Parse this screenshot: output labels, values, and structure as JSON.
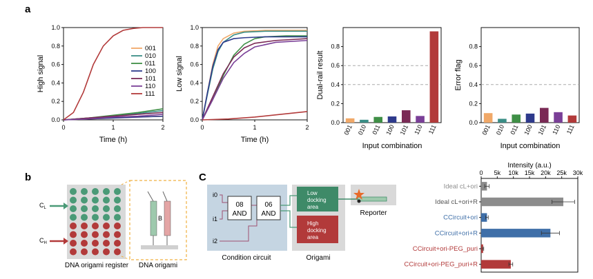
{
  "panels": {
    "a": "a",
    "b": "b",
    "c": "C"
  },
  "legend": {
    "labels": [
      "001",
      "010",
      "011",
      "100",
      "101",
      "110",
      "111"
    ],
    "colors": [
      "#f0a868",
      "#3a8e86",
      "#3f8f46",
      "#2e3a8c",
      "#7a2a55",
      "#7a3f97",
      "#b23a3a"
    ]
  },
  "chart_data": [
    {
      "type": "line",
      "title": "",
      "xlabel": "Time (h)",
      "ylabel": "High signal",
      "xlim": [
        0,
        2
      ],
      "ylim": [
        0,
        1.0
      ],
      "xticks": [
        "0",
        "1",
        "2"
      ],
      "yticks": [
        "0.0",
        "0.2",
        "0.4",
        "0.6",
        "0.8",
        "1.0"
      ],
      "series": [
        {
          "name": "001",
          "x": [
            0,
            0.5,
            1,
            1.5,
            2
          ],
          "y": [
            0,
            0.01,
            0.02,
            0.03,
            0.04
          ]
        },
        {
          "name": "010",
          "x": [
            0,
            0.5,
            1,
            1.5,
            2
          ],
          "y": [
            0,
            0.02,
            0.04,
            0.07,
            0.1
          ]
        },
        {
          "name": "011",
          "x": [
            0,
            0.5,
            1,
            1.5,
            2
          ],
          "y": [
            0,
            0.02,
            0.05,
            0.08,
            0.12
          ]
        },
        {
          "name": "100",
          "x": [
            0,
            0.5,
            1,
            1.5,
            2
          ],
          "y": [
            0,
            0.01,
            0.02,
            0.03,
            0.04
          ]
        },
        {
          "name": "101",
          "x": [
            0,
            0.5,
            1,
            1.5,
            2
          ],
          "y": [
            0,
            0.02,
            0.04,
            0.06,
            0.08
          ]
        },
        {
          "name": "110",
          "x": [
            0,
            0.5,
            1,
            1.5,
            2
          ],
          "y": [
            0,
            0.01,
            0.03,
            0.04,
            0.06
          ]
        },
        {
          "name": "111",
          "x": [
            0,
            0.2,
            0.4,
            0.5,
            0.6,
            0.8,
            1.0,
            1.2,
            1.4,
            1.6,
            2
          ],
          "y": [
            0,
            0.08,
            0.3,
            0.45,
            0.6,
            0.8,
            0.91,
            0.97,
            0.99,
            1.0,
            1.0
          ]
        }
      ]
    },
    {
      "type": "line",
      "title": "",
      "xlabel": "Time (h)",
      "ylabel": "Low signal",
      "xlim": [
        0,
        2
      ],
      "ylim": [
        0,
        1.0
      ],
      "xticks": [
        "0",
        "1",
        "2"
      ],
      "yticks": [
        "0.0",
        "0.2",
        "0.4",
        "0.6",
        "0.8",
        "1.0"
      ],
      "series": [
        {
          "name": "001",
          "x": [
            0,
            0.1,
            0.2,
            0.3,
            0.4,
            0.6,
            0.8,
            1.2,
            2
          ],
          "y": [
            0,
            0.3,
            0.6,
            0.8,
            0.88,
            0.94,
            0.96,
            0.97,
            0.97
          ]
        },
        {
          "name": "010",
          "x": [
            0,
            0.1,
            0.2,
            0.3,
            0.4,
            0.6,
            0.8,
            1.2,
            2
          ],
          "y": [
            0,
            0.28,
            0.55,
            0.74,
            0.84,
            0.92,
            0.95,
            0.96,
            0.96
          ]
        },
        {
          "name": "011",
          "x": [
            0,
            0.2,
            0.4,
            0.6,
            0.8,
            1.0,
            1.2,
            1.6,
            2
          ],
          "y": [
            0,
            0.22,
            0.48,
            0.7,
            0.82,
            0.88,
            0.9,
            0.91,
            0.91
          ]
        },
        {
          "name": "100",
          "x": [
            0,
            0.1,
            0.2,
            0.3,
            0.4,
            0.6,
            0.8,
            1.2,
            2
          ],
          "y": [
            0,
            0.3,
            0.58,
            0.76,
            0.84,
            0.88,
            0.89,
            0.9,
            0.9
          ]
        },
        {
          "name": "101",
          "x": [
            0,
            0.2,
            0.4,
            0.6,
            0.8,
            1.0,
            1.4,
            2
          ],
          "y": [
            0,
            0.25,
            0.5,
            0.68,
            0.78,
            0.83,
            0.86,
            0.88
          ]
        },
        {
          "name": "110",
          "x": [
            0,
            0.2,
            0.4,
            0.6,
            0.8,
            1.0,
            1.4,
            2
          ],
          "y": [
            0,
            0.22,
            0.45,
            0.62,
            0.72,
            0.79,
            0.84,
            0.86
          ]
        },
        {
          "name": "111",
          "x": [
            0,
            0.5,
            1,
            1.5,
            2
          ],
          "y": [
            0,
            0.01,
            0.03,
            0.06,
            0.09
          ]
        }
      ]
    },
    {
      "type": "bar",
      "title": "",
      "xlabel": "Input combination",
      "ylabel": "Dual-rail result",
      "ylim": [
        0,
        1.0
      ],
      "yticks": [
        "0.0",
        "0.2",
        "0.4",
        "0.6",
        "0.8"
      ],
      "gridlines": [
        0.4,
        0.6
      ],
      "categories": [
        "001",
        "010",
        "011",
        "100",
        "101",
        "110",
        "111"
      ],
      "values": [
        0.045,
        0.03,
        0.06,
        0.065,
        0.13,
        0.07,
        0.96
      ]
    },
    {
      "type": "bar",
      "title": "",
      "xlabel": "Input combination",
      "ylabel": "Error flag",
      "ylim": [
        0,
        1.0
      ],
      "yticks": [
        "0.0",
        "0.2",
        "0.4",
        "0.6",
        "0.8"
      ],
      "gridlines": [
        0.4
      ],
      "categories": [
        "001",
        "010",
        "011",
        "100",
        "101",
        "110",
        "111"
      ],
      "values": [
        0.1,
        0.04,
        0.085,
        0.095,
        0.155,
        0.11,
        0.075
      ]
    },
    {
      "type": "bar",
      "orientation": "horizontal",
      "title": "",
      "xlabel": "Intensity (a.u.)",
      "ylabel": "",
      "xlim": [
        0,
        30000
      ],
      "xticks": [
        "0",
        "5k",
        "10k",
        "15k",
        "20k",
        "25k",
        "30k"
      ],
      "categories": [
        "Ideal cL+ori",
        "Ideal cL+ori+R",
        "CCircuit+ori",
        "CCircuit+ori+R",
        "CCircuit+ori-PEG_puri",
        "CCircuit+ori-PEG_puri+R"
      ],
      "values": [
        1800,
        25500,
        1800,
        21500,
        600,
        9200
      ],
      "errors": [
        700,
        3500,
        400,
        2800,
        200,
        600
      ],
      "colors": [
        "#8c8c8c",
        "#8c8c8c",
        "#3f6fa8",
        "#3f6fa8",
        "#b23a3a",
        "#b23a3a"
      ],
      "label_colors": [
        "#8c8c8c",
        "#555555",
        "#3f6fa8",
        "#3f6fa8",
        "#b23a3a",
        "#b23a3a"
      ]
    }
  ],
  "panel_b": {
    "cl_label": "C",
    "cl_sub": "L",
    "ch_label": "C",
    "ch_sub": "H",
    "register_label": "DNA origami register",
    "origami_label": "DNA origami",
    "b_letter": "B"
  },
  "panel_c": {
    "inputs": [
      "i0",
      "i1",
      "i2"
    ],
    "gate1": [
      "08",
      "AND"
    ],
    "gate2": [
      "06",
      "AND"
    ],
    "low_area": [
      "Low",
      "docking",
      "area"
    ],
    "high_area": [
      "High",
      "docking",
      "area"
    ],
    "reporter": "Reporter",
    "condition_circuit": "Condition circuit",
    "origami": "Origami"
  }
}
